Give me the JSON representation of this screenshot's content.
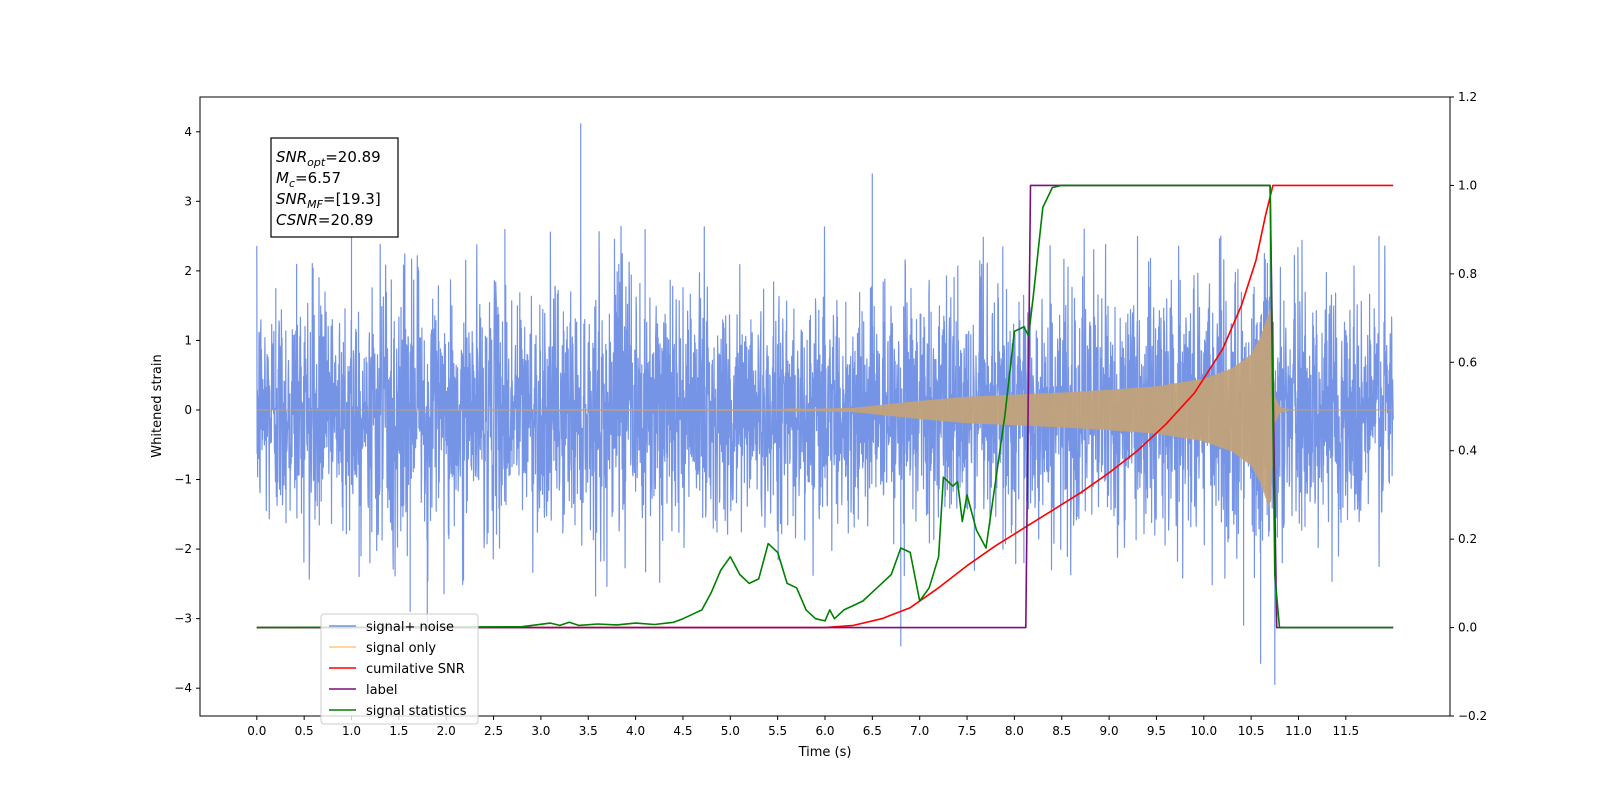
{
  "chart_data": {
    "type": "line",
    "title": "",
    "xlabel": "Time (s)",
    "ylabel": "Whitened strain",
    "xlim": [
      -0.6,
      12.6
    ],
    "ylim": [
      -4.4,
      4.5
    ],
    "ylim_right": [
      -0.2,
      1.2
    ],
    "x_ticks": [
      0.0,
      0.5,
      1.0,
      1.5,
      2.0,
      2.5,
      3.0,
      3.5,
      4.0,
      4.5,
      5.0,
      5.5,
      6.0,
      6.5,
      7.0,
      7.5,
      8.0,
      8.5,
      9.0,
      9.5,
      10.0,
      10.5,
      11.0,
      11.5
    ],
    "x_tick_labels": [
      "0.0",
      "0.5",
      "1.0",
      "1.5",
      "2.0",
      "2.5",
      "3.0",
      "3.5",
      "4.0",
      "4.5",
      "5.0",
      "5.5",
      "6.0",
      "6.5",
      "7.0",
      "7.5",
      "8.0",
      "8.5",
      "9.0",
      "9.5",
      "10.0",
      "10.5",
      "11.0",
      "11.5"
    ],
    "y_ticks": [
      -4,
      -3,
      -2,
      -1,
      0,
      1,
      2,
      3,
      4
    ],
    "y_tick_labels": [
      "−4",
      "−3",
      "−2",
      "−1",
      "0",
      "1",
      "2",
      "3",
      "4"
    ],
    "y_ticks_right": [
      -0.2,
      0.0,
      0.2,
      0.4,
      0.6,
      0.8,
      1.0,
      1.2
    ],
    "y_tick_labels_right": [
      "−0.2",
      "0.0",
      "0.2",
      "0.4",
      "0.6",
      "0.8",
      "1.0",
      "1.2"
    ],
    "grid": false,
    "legend_position": "bottom-left",
    "annotation": {
      "lines": [
        {
          "symbol": "SNR",
          "sub": "opt",
          "value": "=20.89"
        },
        {
          "symbol": "M",
          "sub": "c",
          "value": "=6.57"
        },
        {
          "symbol": "SNR",
          "sub": "MF",
          "value": "=[19.3]"
        },
        {
          "symbol": "CSNR",
          "sub": "",
          "value": "=20.89"
        }
      ]
    },
    "series": [
      {
        "name": "signal+ noise",
        "color": "#7594e6",
        "axis": "left",
        "x_range": [
          0.0,
          12.0
        ],
        "noise_std": 0.85,
        "spikes": [
          [
            0.2,
            1.75
          ],
          [
            0.42,
            2.1
          ],
          [
            1.0,
            2.55
          ],
          [
            1.08,
            -2.4
          ],
          [
            1.62,
            -2.9
          ],
          [
            1.8,
            -3.15
          ],
          [
            2.62,
            2.6
          ],
          [
            3.42,
            4.12
          ],
          [
            4.1,
            2.6
          ],
          [
            6.5,
            3.4
          ],
          [
            6.8,
            -3.4
          ],
          [
            8.1,
            -2.2
          ],
          [
            9.3,
            2.5
          ],
          [
            10.42,
            -3.1
          ],
          [
            10.6,
            -3.65
          ],
          [
            10.75,
            -3.95
          ],
          [
            11.85,
            2.5
          ]
        ]
      },
      {
        "name": "signal only",
        "color": "#c2a27a",
        "axis": "left",
        "x_range": [
          0.0,
          12.0
        ],
        "envelope": [
          [
            0.0,
            0.0
          ],
          [
            5.5,
            0.005
          ],
          [
            6.3,
            0.03
          ],
          [
            7.0,
            0.13
          ],
          [
            7.5,
            0.19
          ],
          [
            8.0,
            0.22
          ],
          [
            8.5,
            0.25
          ],
          [
            9.0,
            0.29
          ],
          [
            9.5,
            0.34
          ],
          [
            10.0,
            0.45
          ],
          [
            10.3,
            0.6
          ],
          [
            10.5,
            0.8
          ],
          [
            10.6,
            1.05
          ],
          [
            10.65,
            1.25
          ],
          [
            10.7,
            1.45
          ],
          [
            10.75,
            0.2
          ],
          [
            10.8,
            0.05
          ],
          [
            10.9,
            0.0
          ],
          [
            12.0,
            0.0
          ]
        ]
      },
      {
        "name": "cumilative SNR",
        "color": "#ff0000",
        "axis": "right",
        "x": [
          0.0,
          6.0,
          6.3,
          6.6,
          6.9,
          7.2,
          7.5,
          7.8,
          8.1,
          8.4,
          8.7,
          9.0,
          9.3,
          9.6,
          9.9,
          10.2,
          10.4,
          10.55,
          10.65,
          10.73,
          10.8,
          12.0
        ],
        "y": [
          0.0,
          0.0,
          0.005,
          0.02,
          0.045,
          0.09,
          0.14,
          0.185,
          0.225,
          0.265,
          0.305,
          0.35,
          0.4,
          0.46,
          0.53,
          0.63,
          0.73,
          0.83,
          0.93,
          1.0,
          1.0,
          1.0
        ]
      },
      {
        "name": "label",
        "color": "#7b0f7b",
        "axis": "right",
        "x": [
          0.0,
          8.12,
          8.17,
          10.7,
          10.77,
          12.0
        ],
        "y": [
          0.0,
          0.0,
          1.0,
          1.0,
          0.0,
          0.0
        ]
      },
      {
        "name": "signal statistics",
        "color": "#008000",
        "axis": "right",
        "x": [
          0.0,
          2.8,
          3.1,
          3.2,
          3.3,
          3.4,
          3.6,
          3.8,
          4.0,
          4.2,
          4.4,
          4.5,
          4.6,
          4.7,
          4.8,
          4.9,
          5.0,
          5.1,
          5.2,
          5.3,
          5.4,
          5.5,
          5.6,
          5.7,
          5.8,
          5.9,
          6.0,
          6.05,
          6.1,
          6.2,
          6.3,
          6.4,
          6.5,
          6.6,
          6.7,
          6.8,
          6.9,
          7.0,
          7.1,
          7.2,
          7.25,
          7.35,
          7.4,
          7.45,
          7.5,
          7.6,
          7.7,
          7.8,
          7.9,
          8.0,
          8.1,
          8.15,
          8.2,
          8.3,
          8.4,
          8.5,
          8.6,
          10.6,
          10.7,
          10.75,
          10.8,
          12.0
        ],
        "y": [
          0.0,
          0.002,
          0.01,
          0.005,
          0.012,
          0.005,
          0.008,
          0.006,
          0.01,
          0.007,
          0.012,
          0.02,
          0.03,
          0.04,
          0.08,
          0.13,
          0.16,
          0.12,
          0.1,
          0.11,
          0.19,
          0.17,
          0.1,
          0.09,
          0.04,
          0.02,
          0.015,
          0.04,
          0.02,
          0.04,
          0.05,
          0.06,
          0.08,
          0.1,
          0.12,
          0.18,
          0.17,
          0.06,
          0.09,
          0.16,
          0.34,
          0.32,
          0.33,
          0.24,
          0.3,
          0.22,
          0.18,
          0.33,
          0.48,
          0.67,
          0.68,
          0.66,
          0.75,
          0.95,
          0.995,
          1.0,
          1.0,
          1.0,
          1.0,
          0.12,
          0.0,
          0.0
        ]
      }
    ]
  }
}
